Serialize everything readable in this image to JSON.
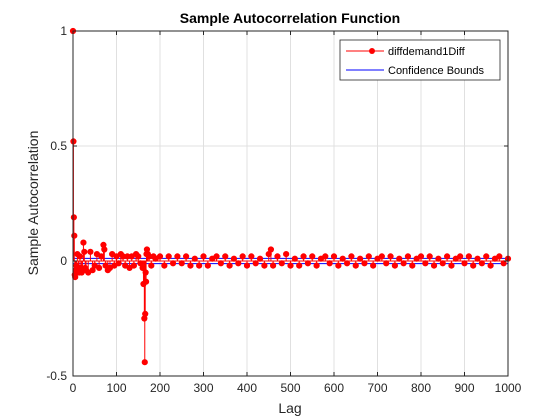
{
  "chart_data": {
    "type": "line",
    "title": "Sample Autocorrelation Function",
    "xlabel": "Lag",
    "ylabel": "Sample Autocorrelation",
    "xlim": [
      0,
      1000
    ],
    "ylim": [
      -0.5,
      1
    ],
    "xticks": [
      0,
      100,
      200,
      300,
      400,
      500,
      600,
      700,
      800,
      900,
      1000
    ],
    "yticks": [
      -0.5,
      0,
      0.5,
      1
    ],
    "xtick_labels": [
      "0",
      "100",
      "200",
      "300",
      "400",
      "500",
      "600",
      "700",
      "800",
      "900",
      "1000"
    ],
    "ytick_labels": [
      "-0.5",
      "0",
      "0.5",
      "1"
    ],
    "grid": true,
    "legend_position": "top-right",
    "series": [
      {
        "name": "diffdemand1Diff",
        "color": "#ff0000",
        "style": "stem-markers",
        "x": [
          0,
          1,
          2,
          3,
          4,
          5,
          6,
          8,
          10,
          12,
          14,
          16,
          18,
          20,
          22,
          24,
          26,
          28,
          30,
          35,
          40,
          45,
          50,
          55,
          60,
          65,
          70,
          72,
          75,
          80,
          85,
          90,
          95,
          100,
          105,
          110,
          115,
          120,
          125,
          130,
          135,
          140,
          145,
          150,
          155,
          160,
          162,
          164,
          165,
          166,
          167,
          168,
          169,
          170,
          172,
          175,
          180,
          185,
          190,
          200,
          210,
          220,
          230,
          240,
          250,
          260,
          270,
          280,
          290,
          300,
          310,
          320,
          330,
          340,
          350,
          360,
          370,
          380,
          390,
          400,
          410,
          420,
          430,
          440,
          450,
          455,
          460,
          470,
          480,
          490,
          500,
          510,
          520,
          530,
          540,
          550,
          560,
          570,
          580,
          590,
          600,
          610,
          620,
          630,
          640,
          650,
          660,
          670,
          680,
          690,
          700,
          710,
          720,
          730,
          740,
          750,
          760,
          770,
          780,
          790,
          800,
          810,
          820,
          830,
          840,
          850,
          860,
          870,
          880,
          890,
          900,
          910,
          920,
          930,
          940,
          950,
          960,
          970,
          980,
          990,
          1000
        ],
        "values": [
          1.0,
          0.52,
          0.19,
          0.11,
          -0.06,
          -0.07,
          -0.04,
          -0.02,
          0.03,
          -0.04,
          -0.05,
          0.02,
          -0.03,
          -0.05,
          -0.04,
          0.08,
          0.04,
          -0.03,
          -0.04,
          -0.05,
          0.04,
          -0.04,
          -0.02,
          0.03,
          -0.03,
          0.02,
          0.07,
          0.05,
          -0.02,
          -0.04,
          -0.03,
          0.03,
          -0.02,
          0.02,
          -0.01,
          0.03,
          0.02,
          -0.02,
          0.02,
          -0.03,
          0.02,
          -0.02,
          0.03,
          0.02,
          -0.01,
          -0.03,
          -0.1,
          -0.25,
          -0.44,
          -0.23,
          -0.05,
          -0.09,
          0.03,
          0.05,
          0.03,
          0.02,
          -0.02,
          0.02,
          0.01,
          0.02,
          -0.02,
          0.02,
          -0.01,
          0.02,
          -0.01,
          0.02,
          -0.02,
          0.01,
          -0.02,
          0.02,
          -0.02,
          0.01,
          0.02,
          -0.01,
          0.02,
          -0.02,
          0.01,
          -0.01,
          0.02,
          -0.02,
          0.02,
          -0.01,
          0.01,
          -0.02,
          0.03,
          0.05,
          -0.02,
          0.02,
          -0.01,
          0.03,
          -0.02,
          0.01,
          -0.02,
          0.02,
          -0.01,
          0.02,
          -0.02,
          0.01,
          0.02,
          -0.01,
          0.02,
          -0.02,
          0.01,
          -0.01,
          0.02,
          -0.02,
          0.01,
          -0.01,
          0.02,
          -0.02,
          0.01,
          0.02,
          -0.01,
          0.02,
          -0.02,
          0.01,
          -0.01,
          0.02,
          -0.02,
          0.01,
          0.02,
          -0.01,
          0.02,
          -0.02,
          0.01,
          -0.01,
          0.02,
          -0.02,
          0.01,
          0.02,
          -0.01,
          0.02,
          -0.02,
          0.01,
          -0.01,
          0.02,
          -0.02,
          0.01,
          0.02,
          -0.01,
          0.01
        ]
      },
      {
        "name": "Confidence Bounds",
        "color": "#0000ff",
        "style": "horizontal-lines",
        "values": [
          0.0115,
          -0.0115
        ]
      }
    ]
  }
}
